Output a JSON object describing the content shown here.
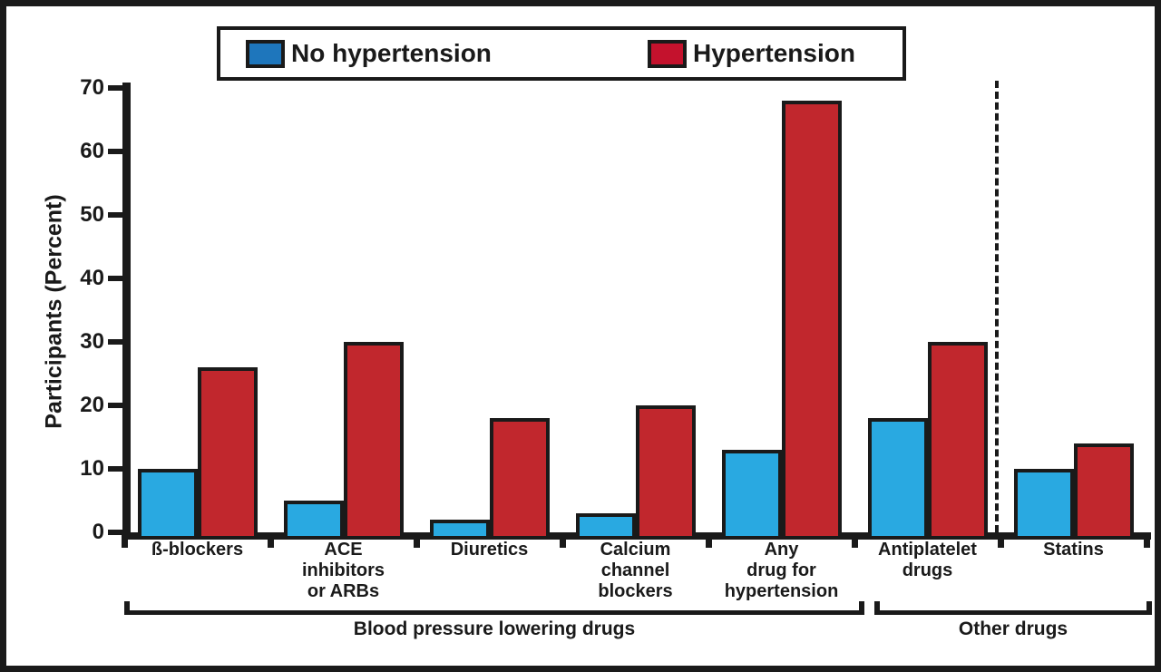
{
  "figure": {
    "background": "#ffffff",
    "ink_color": "#1a1a1a"
  },
  "legend": {
    "items": [
      {
        "label": "No hypertension",
        "color": "#1E76BC"
      },
      {
        "label": "Hypertension",
        "color": "#C4122D"
      }
    ]
  },
  "chart_data": {
    "type": "bar",
    "title": "",
    "xlabel": "",
    "ylabel": "Participants (Percent)",
    "ylim": [
      0,
      70
    ],
    "yticks": [
      0,
      10,
      20,
      30,
      40,
      50,
      60,
      70
    ],
    "grid": false,
    "legend_position": "top",
    "categories": [
      "ß-blockers",
      "ACE\ninhibitors\nor ARBs",
      "Diuretics",
      "Calcium\nchannel\nblockers",
      "Any\ndrug for\nhypertension",
      "Antiplatelet\ndrugs",
      "Statins"
    ],
    "series": [
      {
        "name": "No hypertension",
        "color": "#29A9E1",
        "values": [
          10,
          5,
          2,
          3,
          13,
          18,
          10
        ]
      },
      {
        "name": "Hypertension",
        "color": "#C1272D",
        "values": [
          26,
          30,
          18,
          20,
          68,
          30,
          14
        ]
      }
    ],
    "separator_dashed_line": {
      "between_categories": [
        "Antiplatelet\ndrugs",
        "Statins"
      ]
    },
    "group_brackets": [
      {
        "label": "Blood pressure lowering drugs",
        "category_span": [
          0,
          4
        ]
      },
      {
        "label": "Other drugs",
        "category_span": [
          5,
          6
        ]
      }
    ]
  }
}
